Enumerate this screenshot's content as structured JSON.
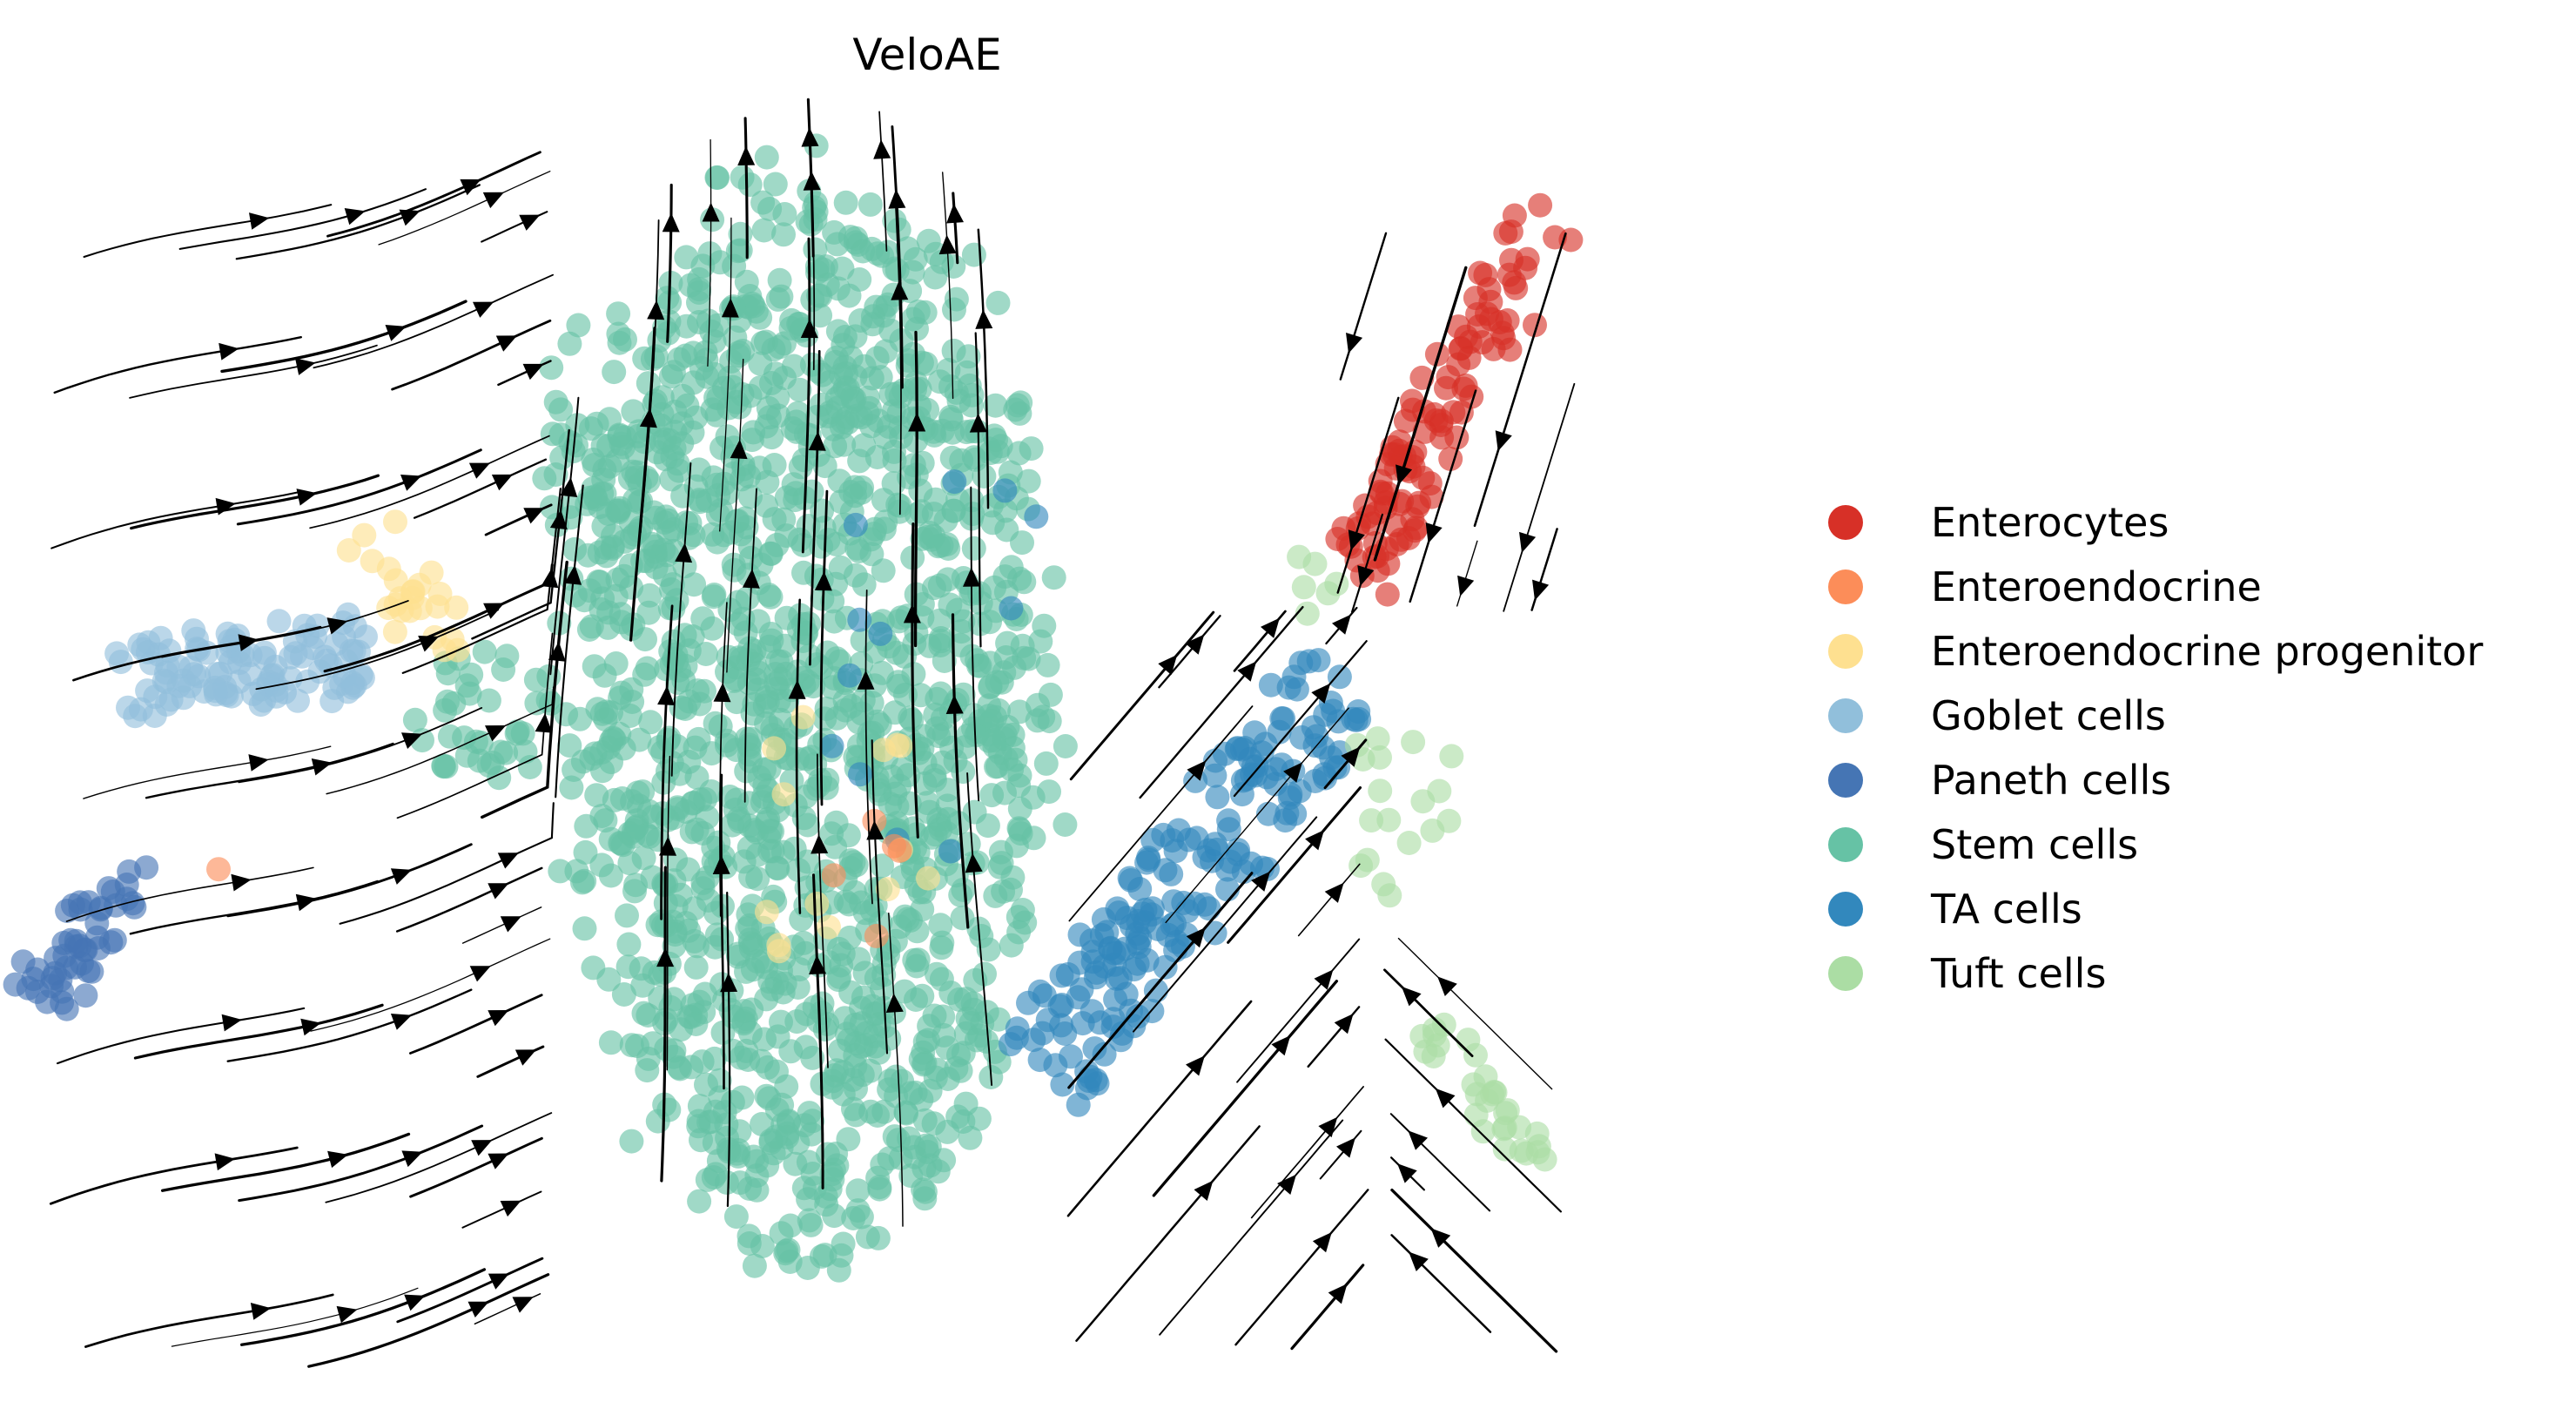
{
  "chart_data": {
    "type": "scatter",
    "subtype": "embedding with velocity streamlines",
    "title": "VeloAE",
    "xlabel": "",
    "ylabel": "",
    "axes_visible": false,
    "grid": false,
    "legend_position": "right",
    "xlim": [
      -10,
      10
    ],
    "ylim": [
      -6,
      6
    ],
    "categories": [
      {
        "name": "Enterocytes",
        "color": "#d73027"
      },
      {
        "name": "Enteroendocrine",
        "color": "#fc8d59"
      },
      {
        "name": "Enteroendocrine progenitor",
        "color": "#fee090"
      },
      {
        "name": "Goblet cells",
        "color": "#91bfdb"
      },
      {
        "name": "Paneth cells",
        "color": "#4575b4"
      },
      {
        "name": "Stem cells",
        "color": "#66c2a5"
      },
      {
        "name": "TA cells",
        "color": "#3288bd"
      },
      {
        "name": "Tuft cells",
        "color": "#abdda4"
      }
    ],
    "clusters": [
      {
        "category": "Stem cells",
        "shape": "ellipse",
        "center": [
          -1.1,
          0.3
        ],
        "spread": [
          2.7,
          4.9
        ],
        "count": 1500
      },
      {
        "category": "Stem cells",
        "shape": "ellipse",
        "center": [
          -3.4,
          2.6
        ],
        "spread": [
          0.9,
          1.4
        ],
        "count": 60
      },
      {
        "category": "Stem cells",
        "shape": "ellipse",
        "center": [
          -4.8,
          0.3
        ],
        "spread": [
          0.9,
          0.6
        ],
        "count": 40
      },
      {
        "category": "Goblet cells",
        "shape": "band",
        "start": [
          -9.0,
          0.6
        ],
        "end": [
          -6.2,
          0.9
        ],
        "width": 0.7,
        "count": 110
      },
      {
        "category": "Paneth cells",
        "shape": "band",
        "start": [
          -10.0,
          -2.4
        ],
        "end": [
          -8.8,
          -1.0
        ],
        "width": 0.6,
        "count": 50
      },
      {
        "category": "Enteroendocrine progenitor",
        "shape": "band",
        "start": [
          -6.3,
          2.1
        ],
        "end": [
          -5.1,
          0.8
        ],
        "width": 0.6,
        "count": 25
      },
      {
        "category": "Enteroendocrine progenitor",
        "shape": "ellipse",
        "center": [
          -0.7,
          -1.0
        ],
        "spread": [
          1.0,
          1.8
        ],
        "count": 14
      },
      {
        "category": "Enteroendocrine",
        "shape": "ellipse",
        "center": [
          -0.5,
          -1.2
        ],
        "spread": [
          0.6,
          0.7
        ],
        "count": 5
      },
      {
        "category": "Enteroendocrine",
        "shape": "ellipse",
        "center": [
          -8.0,
          -1.0
        ],
        "spread": [
          0.2,
          0.2
        ],
        "count": 1
      },
      {
        "category": "TA cells",
        "shape": "band",
        "start": [
          1.5,
          -3.0
        ],
        "end": [
          5.0,
          0.6
        ],
        "width": 1.1,
        "count": 190
      },
      {
        "category": "TA cells",
        "shape": "ellipse",
        "center": [
          0.5,
          1.0
        ],
        "spread": [
          1.5,
          2.5
        ],
        "count": 12
      },
      {
        "category": "Enterocytes",
        "shape": "band",
        "start": [
          5.2,
          1.6
        ],
        "end": [
          7.4,
          5.0
        ],
        "width": 0.7,
        "count": 110
      },
      {
        "category": "Tuft cells",
        "shape": "band",
        "start": [
          6.0,
          -2.6
        ],
        "end": [
          7.4,
          -3.8
        ],
        "width": 0.4,
        "count": 30
      },
      {
        "category": "Tuft cells",
        "shape": "ellipse",
        "center": [
          5.7,
          -0.6
        ],
        "spread": [
          0.7,
          0.9
        ],
        "count": 18
      },
      {
        "category": "Tuft cells",
        "shape": "ellipse",
        "center": [
          4.6,
          1.5
        ],
        "spread": [
          0.4,
          0.3
        ],
        "count": 6
      }
    ]
  }
}
